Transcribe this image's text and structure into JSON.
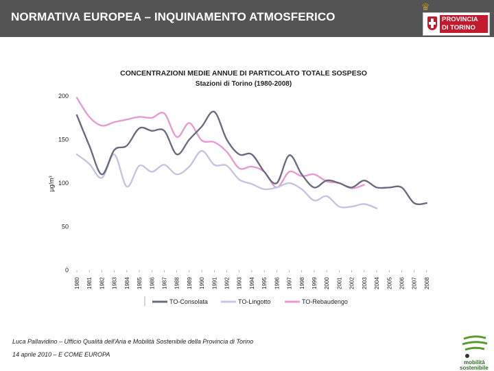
{
  "header": {
    "title": "NORMATIVA EUROPEA – INQUINAMENTO ATMOSFERICO",
    "logo_line1": "PROVINCIA",
    "logo_line2": "DI TORINO"
  },
  "chart_data": {
    "type": "line",
    "title": "CONCENTRAZIONI MEDIE ANNUE DI PARTICOLATO TOTALE SOSPESO",
    "subtitle": "Stazioni di Torino (1980-2008)",
    "xlabel": "",
    "ylabel": "µg/m³",
    "ylim": [
      0,
      200
    ],
    "yticks": [
      "0",
      "50",
      "100",
      "150",
      "200"
    ],
    "categories": [
      "1980",
      "1981",
      "1982",
      "1983",
      "1984",
      "1985",
      "1986",
      "1987",
      "1988",
      "1989",
      "1990",
      "1991",
      "1992",
      "1993",
      "1994",
      "1995",
      "1996",
      "1997",
      "1998",
      "1999",
      "2000",
      "2001",
      "2002",
      "2003",
      "2004",
      "2005",
      "2006",
      "2007",
      "2008"
    ],
    "series": [
      {
        "name": "TO-Consolata",
        "color": "#6b6b80",
        "values": [
          178,
          143,
          110,
          138,
          143,
          163,
          160,
          160,
          133,
          150,
          165,
          182,
          150,
          133,
          133,
          113,
          100,
          132,
          110,
          95,
          103,
          100,
          95,
          103,
          95,
          95,
          95,
          77,
          77
        ]
      },
      {
        "name": "TO-Lingotto",
        "color": "#c4c4e4",
        "values": [
          133,
          122,
          106,
          133,
          96,
          120,
          113,
          121,
          110,
          119,
          137,
          121,
          120,
          104,
          99,
          93,
          95,
          100,
          93,
          80,
          85,
          73,
          73,
          76,
          71,
          null,
          null,
          null,
          null
        ]
      },
      {
        "name": "TO-Rebaudengo",
        "color": "#e89ad0",
        "values": [
          198,
          176,
          166,
          170,
          173,
          176,
          175,
          180,
          153,
          169,
          149,
          147,
          136,
          117,
          119,
          113,
          95,
          113,
          108,
          110,
          102,
          100,
          94,
          98,
          null,
          null,
          null,
          null,
          null
        ]
      }
    ],
    "legend_position": "bottom"
  },
  "footer": {
    "credit": "Luca Pallavidino – Ufficio Qualità dell'Aria e Mobilità Sostenibile della Provincia di Torino",
    "date": "14 aprile 2010 – E COME EUROPA",
    "logo_line1": "mobilità",
    "logo_line2": "sostenibile"
  }
}
